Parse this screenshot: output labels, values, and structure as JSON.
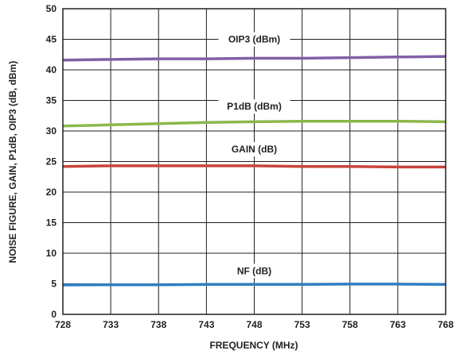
{
  "chart_data": {
    "type": "line",
    "xlabel": "FREQUENCY (MHz)",
    "ylabel": "NOISE FIGURE, GAIN, P1dB, OIP3 (dB, dBm)",
    "xlim": [
      728,
      768
    ],
    "ylim": [
      0,
      50
    ],
    "x_ticks": [
      "728",
      "733",
      "738",
      "743",
      "748",
      "753",
      "758",
      "763",
      "768"
    ],
    "y_ticks": [
      "0",
      "5",
      "10",
      "15",
      "20",
      "25",
      "30",
      "35",
      "40",
      "45",
      "50"
    ],
    "grid": true,
    "x": [
      728,
      733,
      738,
      743,
      748,
      753,
      758,
      763,
      768
    ],
    "series": [
      {
        "name": "OIP3 (dBm)",
        "color": "#8060a8",
        "label_x": 748,
        "label_y": 45,
        "values": [
          41.6,
          41.7,
          41.8,
          41.8,
          41.9,
          41.9,
          42.0,
          42.1,
          42.2
        ]
      },
      {
        "name": "P1dB (dBm)",
        "color": "#8ab84a",
        "label_x": 748,
        "label_y": 34,
        "values": [
          30.8,
          31.0,
          31.2,
          31.4,
          31.5,
          31.6,
          31.6,
          31.6,
          31.5
        ]
      },
      {
        "name": "GAIN (dB)",
        "color": "#c8443c",
        "label_x": 748,
        "label_y": 27,
        "values": [
          24.2,
          24.3,
          24.3,
          24.3,
          24.3,
          24.2,
          24.2,
          24.1,
          24.1
        ]
      },
      {
        "name": "NF (dB)",
        "color": "#2e7fc2",
        "label_x": 748,
        "label_y": 7.1,
        "values": [
          4.8,
          4.85,
          4.85,
          4.9,
          4.9,
          4.9,
          4.95,
          4.95,
          4.9
        ]
      }
    ]
  }
}
